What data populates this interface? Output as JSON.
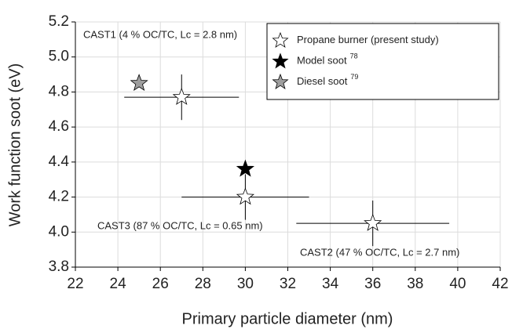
{
  "chart_data": {
    "type": "scatter",
    "xlabel": "Primary particle diameter (nm)",
    "ylabel": "Work function soot (eV)",
    "xlim": [
      22,
      42
    ],
    "xticks": [
      22,
      24,
      26,
      28,
      30,
      32,
      34,
      36,
      38,
      40,
      42
    ],
    "ylim": [
      3.8,
      5.2
    ],
    "yticks": [
      3.8,
      {
        "value": 4,
        "label": "4.0"
      },
      4.2,
      4.4,
      4.6,
      4.8,
      {
        "value": 5,
        "label": "5.0"
      },
      5.2
    ],
    "grid": true,
    "legend": "upper right",
    "series": [
      {
        "name": "Propane burner (present study)",
        "color": "#ffffff",
        "x": [
          27,
          30,
          36
        ],
        "values": [
          4.77,
          4.2,
          4.05
        ],
        "xerr": [
          2.7,
          3,
          3.6
        ],
        "yerr": [
          0.13,
          0.13,
          0.13
        ]
      },
      {
        "name": "Model soot",
        "ref": "78",
        "color": "#000000",
        "x": [
          30
        ],
        "values": [
          4.36
        ]
      },
      {
        "name": "Diesel soot",
        "ref": "79",
        "color": "#9e9e9e",
        "x": [
          25
        ],
        "values": [
          4.85
        ]
      }
    ],
    "annotations": [
      "CAST1 (4 % OC/TC, Lc = 2.8 nm)",
      "CAST3 (87 % OC/TC, Lc = 0.65 nm)",
      "CAST2 (47 % OC/TC, Lc = 2.7 nm)"
    ]
  }
}
